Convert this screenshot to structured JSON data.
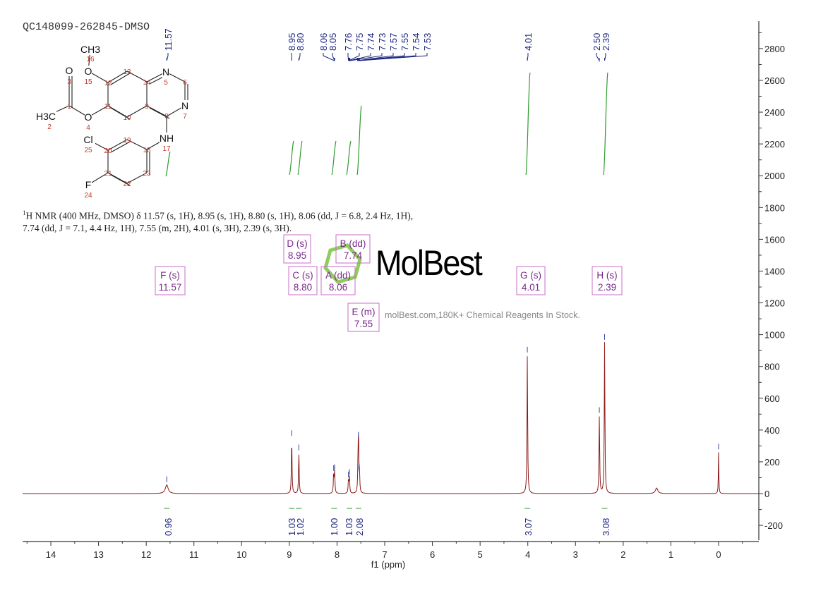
{
  "sample_name": "QC148099-262845-DMSO",
  "summary": {
    "line1_sup": "1",
    "line1": "H NMR (400 MHz, DMSO) δ 11.57 (s, 1H), 8.95 (s, 1H), 8.80 (s, 1H), 8.06 (dd, J = 6.8, 2.4 Hz, 1H),",
    "line2": "7.74 (dd, J = 7.1, 4.4 Hz, 1H), 7.55 (m, 2H), 4.01 (s, 3H), 2.39 (s, 3H)."
  },
  "watermark": {
    "logo_text": "MolBest",
    "tagline": "molBest.com,180K+ Chemical Reagents In Stock."
  },
  "molecule": {
    "atoms": [
      {
        "symbol": "N",
        "num": "5"
      },
      {
        "symbol": "",
        "num": "6"
      },
      {
        "symbol": "N",
        "num": "7"
      },
      {
        "symbol": "",
        "num": "8"
      },
      {
        "symbol": "",
        "num": "9"
      },
      {
        "symbol": "",
        "num": "14"
      },
      {
        "symbol": "",
        "num": "13"
      },
      {
        "symbol": "",
        "num": "12"
      },
      {
        "symbol": "",
        "num": "11"
      },
      {
        "symbol": "",
        "num": "10"
      },
      {
        "symbol": "O",
        "num": "15"
      },
      {
        "symbol": "CH3",
        "num": "16"
      },
      {
        "symbol": "O",
        "num": "4"
      },
      {
        "symbol": "",
        "num": "1"
      },
      {
        "symbol": "O",
        "num": "3"
      },
      {
        "symbol": "H3C",
        "num": "2"
      },
      {
        "symbol": "NH",
        "num": "17"
      },
      {
        "symbol": "",
        "num": "18"
      },
      {
        "symbol": "",
        "num": "19"
      },
      {
        "symbol": "",
        "num": "20"
      },
      {
        "symbol": "",
        "num": "21"
      },
      {
        "symbol": "",
        "num": "22"
      },
      {
        "symbol": "",
        "num": "23"
      },
      {
        "symbol": "Cl",
        "num": "25"
      },
      {
        "symbol": "F",
        "num": "24"
      }
    ]
  },
  "colors": {
    "spectrum": "#8b1a1a",
    "peak_labels": "#1a237e",
    "integral_curve": "#2e9a2e",
    "multiplet_box": "#c86cc8",
    "multiplet_text": "#7b2a8b",
    "atom_numbers": "#c0392b"
  },
  "chart_data": {
    "type": "line",
    "xlabel": "f1 (ppm)",
    "xlim": [
      14.6,
      -0.85
    ],
    "ylim": [
      -250,
      2950
    ],
    "x_reversed": true,
    "x_ticks": [
      "14",
      "13",
      "12",
      "11",
      "10",
      "9",
      "8",
      "7",
      "6",
      "5",
      "4",
      "3",
      "2",
      "1",
      "0"
    ],
    "y_ticks": [
      "-200",
      "0",
      "200",
      "400",
      "600",
      "800",
      "1000",
      "1200",
      "1400",
      "1600",
      "1800",
      "2000",
      "2200",
      "2400",
      "2600",
      "2800"
    ],
    "peaks": [
      {
        "ppm": 11.57,
        "intensity": 55,
        "width": 0.035
      },
      {
        "ppm": 8.95,
        "intensity": 345,
        "width": 0.008
      },
      {
        "ppm": 8.8,
        "intensity": 255,
        "width": 0.008
      },
      {
        "ppm": 8.07,
        "intensity": 125,
        "width": 0.008
      },
      {
        "ppm": 8.05,
        "intensity": 130,
        "width": 0.008
      },
      {
        "ppm": 7.76,
        "intensity": 85,
        "width": 0.008
      },
      {
        "ppm": 7.74,
        "intensity": 100,
        "width": 0.008
      },
      {
        "ppm": 7.56,
        "intensity": 130,
        "width": 0.008
      },
      {
        "ppm": 7.55,
        "intensity": 335,
        "width": 0.008
      },
      {
        "ppm": 7.53,
        "intensity": 120,
        "width": 0.008
      },
      {
        "ppm": 4.01,
        "intensity": 870,
        "width": 0.008
      },
      {
        "ppm": 2.5,
        "intensity": 490,
        "width": 0.008
      },
      {
        "ppm": 2.39,
        "intensity": 950,
        "width": 0.008
      },
      {
        "ppm": 1.3,
        "intensity": 35,
        "width": 0.03
      },
      {
        "ppm": 0.0,
        "intensity": 260,
        "width": 0.006
      }
    ],
    "peak_labels": [
      "11.57",
      "8.95",
      "8.80",
      "8.06",
      "8.05",
      "7.76",
      "7.75",
      "7.74",
      "7.73",
      "7.57",
      "7.55",
      "7.54",
      "7.53",
      "4.01",
      "2.50",
      "2.39"
    ],
    "integrals": [
      {
        "ppm": 11.57,
        "value": "0.96"
      },
      {
        "ppm": 8.95,
        "value": "1.03"
      },
      {
        "ppm": 8.8,
        "value": "1.02"
      },
      {
        "ppm": 8.06,
        "value": "1.00"
      },
      {
        "ppm": 7.74,
        "value": "1.03"
      },
      {
        "ppm": 7.55,
        "value": "2.08"
      },
      {
        "ppm": 4.01,
        "value": "3.07"
      },
      {
        "ppm": 2.39,
        "value": "3.08"
      }
    ],
    "multiplets": [
      {
        "label": "F (s)",
        "shift": "11.57"
      },
      {
        "label": "D (s)",
        "shift": "8.95"
      },
      {
        "label": "C (s)",
        "shift": "8.80"
      },
      {
        "label": "A (dd)",
        "shift": "8.06"
      },
      {
        "label": "B (dd)",
        "shift": "7.74"
      },
      {
        "label": "E (m)",
        "shift": "7.55"
      },
      {
        "label": "G (s)",
        "shift": "4.01"
      },
      {
        "label": "H (s)",
        "shift": "2.39"
      }
    ]
  }
}
